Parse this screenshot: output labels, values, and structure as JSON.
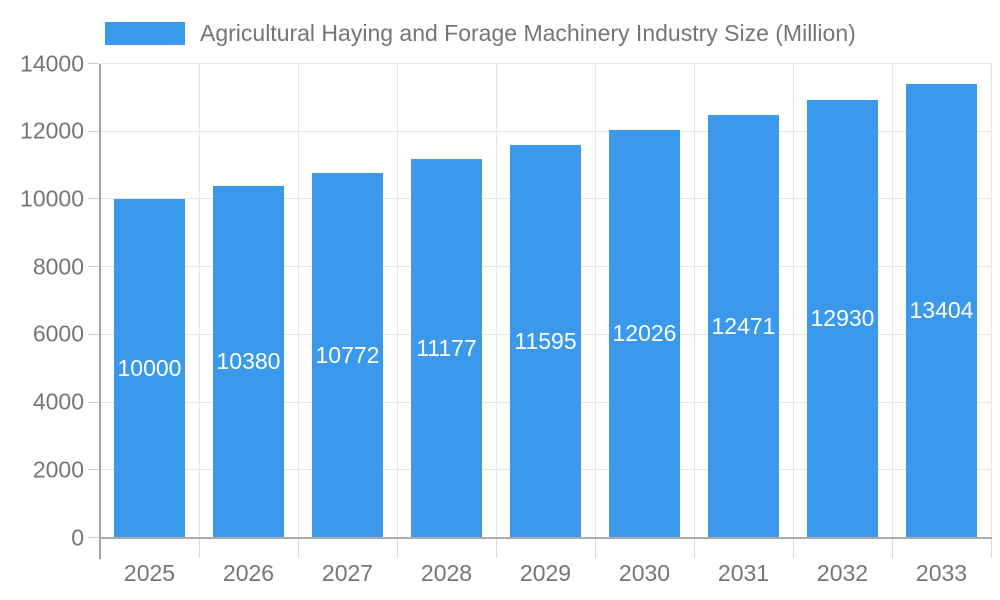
{
  "legend": {
    "label": "Agricultural Haying and Forage Machinery Industry Size (Million)"
  },
  "chart_data": {
    "type": "bar",
    "title": "Agricultural Haying and Forage Machinery Industry Size (Million)",
    "categories": [
      "2025",
      "2026",
      "2027",
      "2028",
      "2029",
      "2030",
      "2031",
      "2032",
      "2033"
    ],
    "values": [
      10000,
      10380,
      10772,
      11177,
      11595,
      12026,
      12471,
      12930,
      13404
    ],
    "xlabel": "",
    "ylabel": "",
    "ylim": [
      0,
      14000
    ],
    "ytick_step": 2000,
    "grid": true,
    "legend_position": "top-left",
    "bar_color": "#3b99ec",
    "bar_label_color": "#ffffff",
    "axis_text_color": "#757575",
    "gridline_color": "#e6e6e6",
    "axis_line_color": "#a3a3a3"
  }
}
